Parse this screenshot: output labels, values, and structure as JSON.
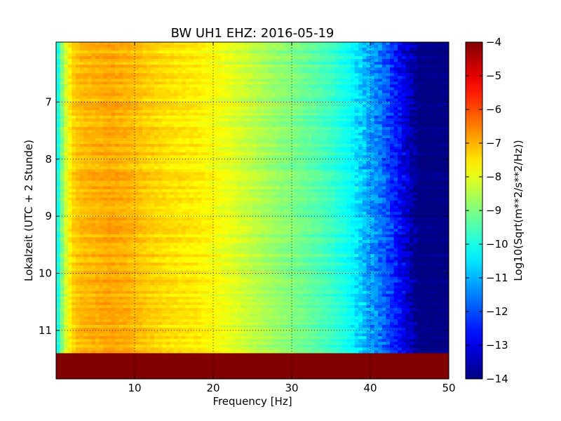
{
  "chart_data": {
    "type": "heatmap",
    "title": "BW UH1 EHZ: 2016-05-19",
    "xlabel": "Frequency [Hz]",
    "ylabel": "Lokalzeit (UTC + 2 Stunde)",
    "xlim": [
      0,
      50
    ],
    "ylim": [
      11.85,
      5.95
    ],
    "x_ticks": [
      10,
      20,
      30,
      40,
      50
    ],
    "x_tick_labels": [
      "10",
      "20",
      "30",
      "40",
      "50"
    ],
    "y_ticks": [
      7,
      8,
      9,
      10,
      11
    ],
    "y_tick_labels": [
      "7",
      "8",
      "9",
      "10",
      "11"
    ],
    "grid": true,
    "colormap": "jet",
    "data_time_range": [
      5.95,
      11.4
    ],
    "fill_value": -4,
    "spectrum_profile": {
      "frequency": [
        0,
        0.5,
        1,
        1.5,
        2,
        3,
        5,
        7,
        9,
        12,
        15,
        18,
        20,
        22,
        25,
        28,
        30,
        33,
        35,
        37,
        38,
        39,
        40,
        41,
        42,
        43,
        44,
        45,
        45.5,
        46,
        50
      ],
      "log10_amplitude": [
        -10.5,
        -9.5,
        -8.5,
        -7.9,
        -7.4,
        -7.1,
        -7.0,
        -6.9,
        -7.0,
        -7.3,
        -7.5,
        -7.6,
        -7.8,
        -8.0,
        -8.4,
        -8.8,
        -9.0,
        -9.4,
        -9.7,
        -10.1,
        -10.4,
        -10.8,
        -11.2,
        -11.5,
        -11.9,
        -12.4,
        -12.9,
        -13.4,
        -13.7,
        -14.0,
        -14.0
      ]
    },
    "colorbar": {
      "label": "Log10(Sqrt(m**2/s**2/Hz))",
      "min": -14,
      "max": -4,
      "ticks": [
        -4,
        -5,
        -6,
        -7,
        -8,
        -9,
        -10,
        -11,
        -12,
        -13,
        -14
      ],
      "tick_labels": [
        "−4",
        "−5",
        "−6",
        "−7",
        "−8",
        "−9",
        "−10",
        "−11",
        "−12",
        "−13",
        "−14"
      ]
    }
  }
}
